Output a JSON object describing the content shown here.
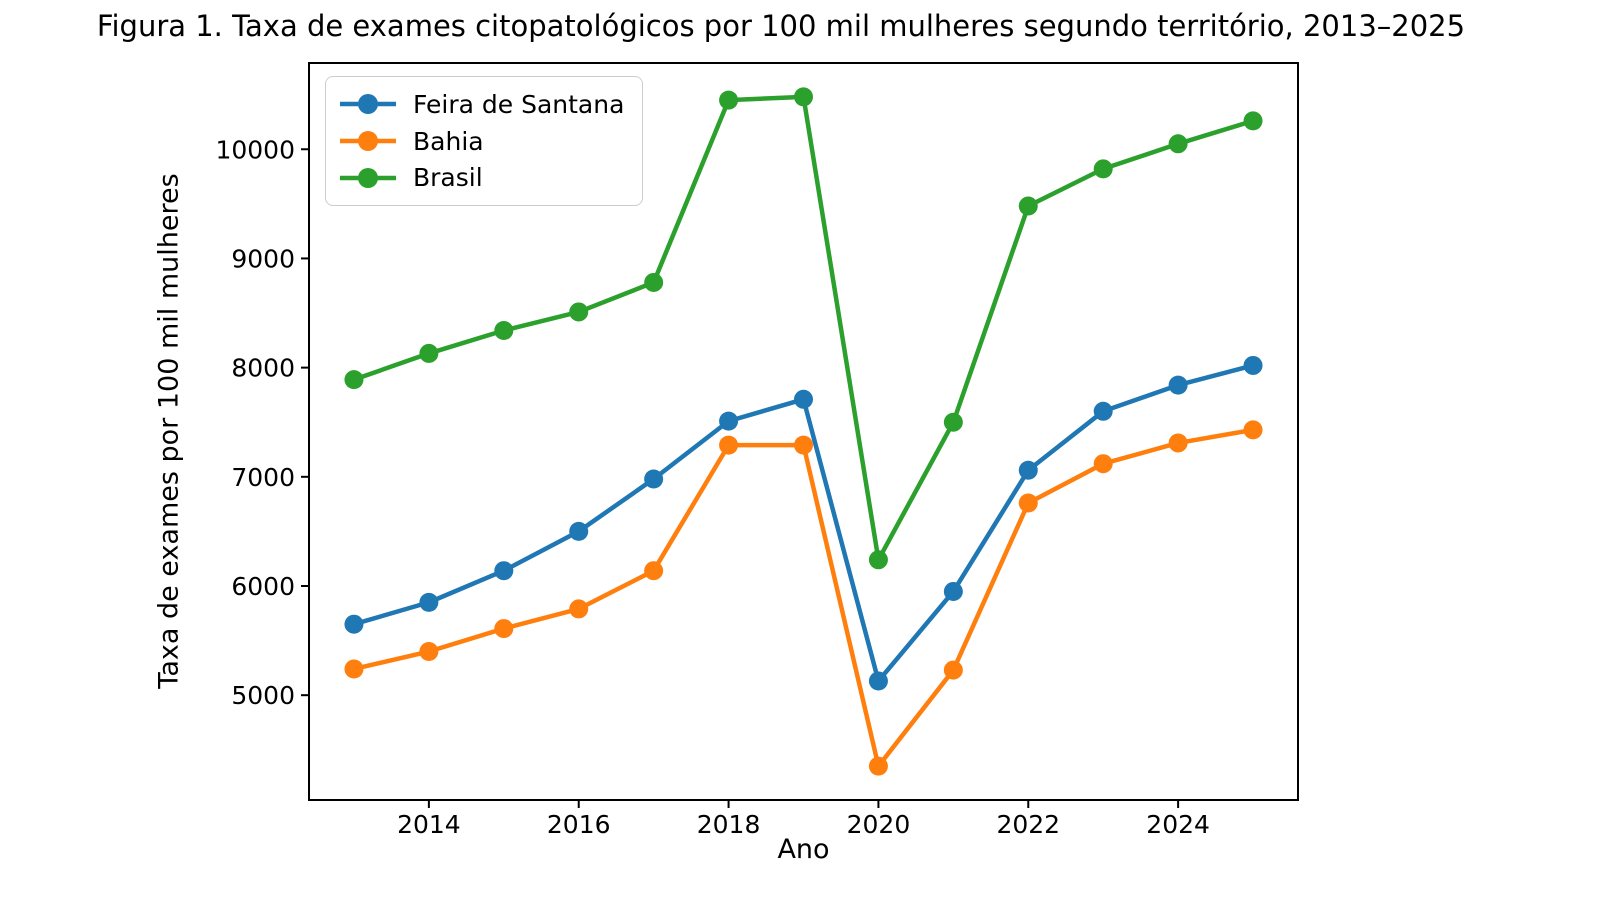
{
  "figure": {
    "title": "Figura 1. Taxa de exames citopatológicos por 100 mil mulheres segundo território, 2013–2025"
  },
  "chart_data": {
    "type": "line",
    "title": "Figura 1. Taxa de exames citopatológicos por 100 mil mulheres segundo território, 2013–2025",
    "xlabel": "Ano",
    "ylabel": "Taxa de exames por 100 mil mulheres",
    "x": [
      2013,
      2014,
      2015,
      2016,
      2017,
      2018,
      2019,
      2020,
      2021,
      2022,
      2023,
      2024,
      2025
    ],
    "series": [
      {
        "name": "Feira de Santana",
        "color": "#1f77b4",
        "values": [
          5650,
          5850,
          6140,
          6500,
          6980,
          7510,
          7710,
          5130,
          5950,
          7060,
          7600,
          7840,
          8020
        ]
      },
      {
        "name": "Bahia",
        "color": "#ff7f0e",
        "values": [
          5240,
          5400,
          5610,
          5790,
          6140,
          7290,
          7290,
          4350,
          5230,
          6760,
          7120,
          7310,
          7430
        ]
      },
      {
        "name": "Brasil",
        "color": "#2ca02c",
        "values": [
          7890,
          8130,
          8340,
          8510,
          8780,
          10450,
          10480,
          6240,
          7500,
          9480,
          9820,
          10050,
          10260
        ]
      }
    ],
    "xticks": [
      2014,
      2016,
      2018,
      2020,
      2022,
      2024
    ],
    "yticks": [
      5000,
      6000,
      7000,
      8000,
      9000,
      10000
    ],
    "xlim": [
      2012.4,
      2025.6
    ],
    "ylim": [
      4040,
      10790
    ],
    "grid": false,
    "legend_position": "upper left",
    "marker": "o",
    "line_width": 4.5,
    "marker_radius": 9.5
  }
}
